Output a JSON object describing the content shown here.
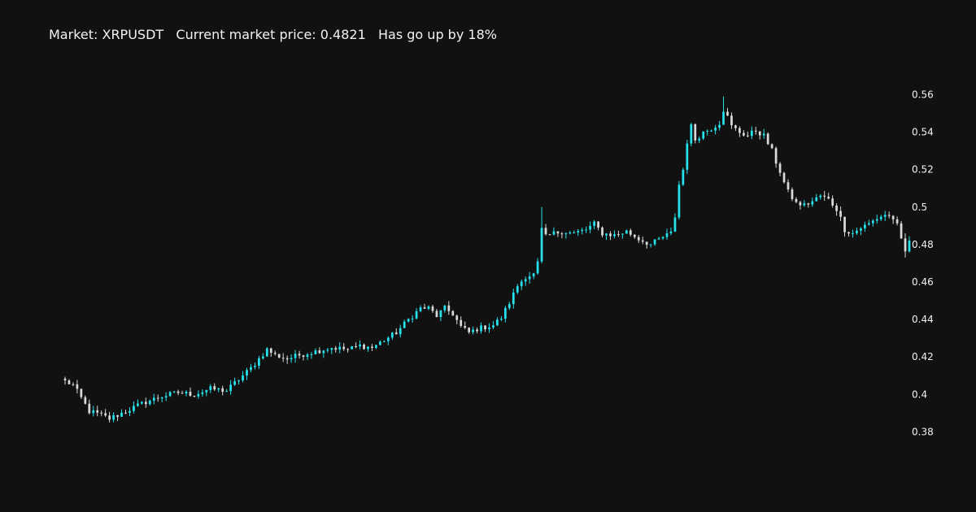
{
  "chart_data": {
    "type": "candlestick",
    "title": "Market: XRPUSDT   Current market price: 0.4821   Has go up by 18%",
    "market": "XRPUSDT",
    "current_price": 0.4821,
    "change_percent": 18,
    "xlabel": "",
    "ylabel": "",
    "yaxis_side": "right",
    "ylim": [
      0.365,
      0.568
    ],
    "yticks": [
      0.38,
      0.4,
      0.42,
      0.44,
      0.46,
      0.48,
      0.5,
      0.52,
      0.54,
      0.56
    ],
    "ytick_labels": [
      "0.38",
      "0.4",
      "0.42",
      "0.44",
      "0.46",
      "0.48",
      "0.5",
      "0.52",
      "0.54",
      "0.56"
    ],
    "grid": false,
    "colors": {
      "background": "#111111",
      "increasing": "#25e3ee",
      "decreasing": "#d9d9d9",
      "text": "#f2f2f2"
    },
    "price_path": [
      [
        0,
        0.407
      ],
      [
        2,
        0.405
      ],
      [
        4,
        0.398
      ],
      [
        6,
        0.391
      ],
      [
        9,
        0.389
      ],
      [
        11,
        0.387
      ],
      [
        13,
        0.389
      ],
      [
        16,
        0.392
      ],
      [
        20,
        0.396
      ],
      [
        24,
        0.399
      ],
      [
        28,
        0.401
      ],
      [
        32,
        0.4
      ],
      [
        36,
        0.403
      ],
      [
        40,
        0.402
      ],
      [
        43,
        0.408
      ],
      [
        46,
        0.414
      ],
      [
        48,
        0.419
      ],
      [
        50,
        0.424
      ],
      [
        52,
        0.421
      ],
      [
        55,
        0.419
      ],
      [
        58,
        0.421
      ],
      [
        62,
        0.423
      ],
      [
        66,
        0.425
      ],
      [
        70,
        0.424
      ],
      [
        73,
        0.426
      ],
      [
        76,
        0.425
      ],
      [
        79,
        0.429
      ],
      [
        82,
        0.433
      ],
      [
        85,
        0.44
      ],
      [
        88,
        0.446
      ],
      [
        90,
        0.446
      ],
      [
        92,
        0.442
      ],
      [
        94,
        0.446
      ],
      [
        96,
        0.443
      ],
      [
        98,
        0.436
      ],
      [
        100,
        0.433
      ],
      [
        102,
        0.435
      ],
      [
        104,
        0.436
      ],
      [
        106,
        0.437
      ],
      [
        108,
        0.441
      ],
      [
        110,
        0.449
      ],
      [
        112,
        0.458
      ],
      [
        114,
        0.463
      ],
      [
        116,
        0.464
      ],
      [
        117,
        0.47
      ],
      [
        118,
        0.488
      ],
      [
        119,
        0.484
      ],
      [
        121,
        0.486
      ],
      [
        123,
        0.487
      ],
      [
        126,
        0.486
      ],
      [
        129,
        0.488
      ],
      [
        131,
        0.491
      ],
      [
        133,
        0.486
      ],
      [
        136,
        0.485
      ],
      [
        139,
        0.487
      ],
      [
        142,
        0.483
      ],
      [
        145,
        0.48
      ],
      [
        148,
        0.484
      ],
      [
        150,
        0.486
      ],
      [
        151,
        0.495
      ],
      [
        152,
        0.512
      ],
      [
        153,
        0.52
      ],
      [
        154,
        0.535
      ],
      [
        155,
        0.543
      ],
      [
        156,
        0.536
      ],
      [
        158,
        0.54
      ],
      [
        160,
        0.542
      ],
      [
        162,
        0.545
      ],
      [
        163,
        0.552
      ],
      [
        164,
        0.548
      ],
      [
        165,
        0.543
      ],
      [
        167,
        0.54
      ],
      [
        169,
        0.538
      ],
      [
        171,
        0.541
      ],
      [
        173,
        0.538
      ],
      [
        175,
        0.53
      ],
      [
        176,
        0.524
      ],
      [
        177,
        0.519
      ],
      [
        178,
        0.513
      ],
      [
        179,
        0.508
      ],
      [
        181,
        0.502
      ],
      [
        183,
        0.501
      ],
      [
        185,
        0.503
      ],
      [
        187,
        0.506
      ],
      [
        189,
        0.504
      ],
      [
        191,
        0.499
      ],
      [
        192,
        0.494
      ],
      [
        193,
        0.488
      ],
      [
        195,
        0.486
      ],
      [
        197,
        0.489
      ],
      [
        199,
        0.491
      ],
      [
        201,
        0.494
      ],
      [
        203,
        0.496
      ],
      [
        205,
        0.494
      ],
      [
        206,
        0.49
      ],
      [
        207,
        0.482
      ],
      [
        208,
        0.476
      ],
      [
        209,
        0.4821
      ]
    ],
    "notable_wicks": [
      {
        "index": 118,
        "high": 0.5,
        "low": 0.47
      },
      {
        "index": 163,
        "high": 0.559,
        "low": 0.545
      },
      {
        "index": 208,
        "high": 0.486,
        "low": 0.473
      }
    ]
  }
}
